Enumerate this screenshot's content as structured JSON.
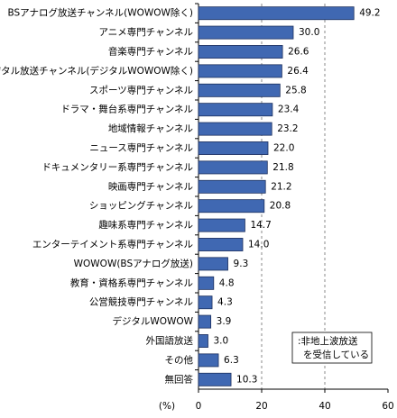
{
  "chart_data": {
    "type": "barh",
    "categories": [
      "BSアナログ放送チャンネル(WOWOW除く)",
      "アニメ専門チャンネル",
      "音楽専門チャンネル",
      "BSデジタル放送チャンネル(デジタルWOWOW除く)",
      "スポーツ専門チャンネル",
      "ドラマ・舞台系専門チャンネル",
      "地域情報チャンネル",
      "ニュース専門チャンネル",
      "ドキュメンタリー系専門チャンネル",
      "映画専門チャンネル",
      "ショッピングチャンネル",
      "趣味系専門チャンネル",
      "エンターテイメント系専門チャンネル",
      "WOWOW(BSアナログ放送)",
      "教育・資格系専門チャンネル",
      "公営競技専門チャンネル",
      "デジタルWOWOW",
      "外国語放送",
      "その他",
      "無回答"
    ],
    "values": [
      49.2,
      30.0,
      26.6,
      26.4,
      25.8,
      23.4,
      23.2,
      22.0,
      21.8,
      21.2,
      20.8,
      14.7,
      14.0,
      9.3,
      4.8,
      4.3,
      3.9,
      3.0,
      6.3,
      10.3
    ],
    "value_labels": [
      "49.2",
      "30.0",
      "26.6",
      "26.4",
      "25.8",
      "23.4",
      "23.2",
      "22.0",
      "21.8",
      "21.2",
      "20.8",
      "14.7",
      "14.0",
      "9.3",
      "4.8",
      "4.3",
      "3.9",
      "3.0",
      "6.3",
      "10.3"
    ],
    "color": "#4068b2",
    "xlabel": "(%)",
    "xlim": [
      0,
      60
    ],
    "xticks": [
      0,
      20,
      40,
      60
    ],
    "grid": true,
    "annotation": [
      ":非地上波放送",
      "を受信している"
    ]
  }
}
